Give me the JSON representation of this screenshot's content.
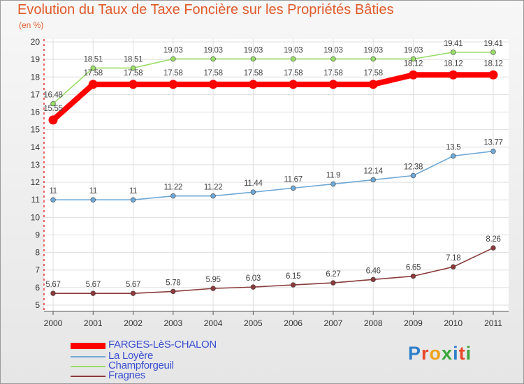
{
  "title": "Evolution du Taux de Taxe Foncière sur les Propriétés Bâties",
  "unit_label": "(en %)",
  "logo": {
    "text": "Proxiti",
    "colors": [
      "#2e7fc9",
      "#e8472a",
      "#f0a21c",
      "#3aa63a",
      "#2e7fc9",
      "#e8472a",
      "#3aa63a"
    ]
  },
  "chart_data": {
    "type": "line",
    "title": "Evolution du Taux de Taxe Foncière sur les Propriétés Bâties",
    "ylabel": "(en %)",
    "xlabel": "",
    "x": [
      "2000",
      "2001",
      "2002",
      "2003",
      "2004",
      "2005",
      "2006",
      "2007",
      "2008",
      "2009",
      "2010",
      "2011"
    ],
    "ylim": [
      5,
      20
    ],
    "yticks": [
      "5",
      "6",
      "7",
      "8",
      "9",
      "10",
      "11",
      "12",
      "13",
      "14",
      "15",
      "16",
      "17",
      "18",
      "19",
      "20"
    ],
    "grid": true,
    "legend_position": "bottom-left",
    "series": [
      {
        "name": "FARGES-LèS-CHALON",
        "color": "#ff0000",
        "emphasis": true,
        "values": [
          15.55,
          17.58,
          17.58,
          17.58,
          17.58,
          17.58,
          17.58,
          17.58,
          17.58,
          18.12,
          18.12,
          18.12
        ],
        "labels": [
          "15.55",
          "17.58",
          "17.58",
          "17.58",
          "17.58",
          "17.58",
          "17.58",
          "17.58",
          "17.58",
          "18.12",
          "18.12",
          "18.12"
        ]
      },
      {
        "name": "La Loyère",
        "color": "#6fa8d6",
        "values": [
          11,
          11,
          11,
          11.22,
          11.22,
          11.44,
          11.67,
          11.9,
          12.14,
          12.38,
          13.5,
          13.77
        ],
        "labels": [
          "11",
          "11",
          "11",
          "11.22",
          "11.22",
          "11.44",
          "11.67",
          "11.9",
          "12.14",
          "12.38",
          "13.5",
          "13.77"
        ]
      },
      {
        "name": "Champforgeuil",
        "color": "#99dd66",
        "values": [
          16.48,
          18.51,
          18.51,
          19.03,
          19.03,
          19.03,
          19.03,
          19.03,
          19.03,
          19.03,
          19.41,
          19.41
        ],
        "labels": [
          "16.48",
          "18.51",
          "18.51",
          "19.03",
          "19.03",
          "19.03",
          "19.03",
          "19.03",
          "19.03",
          "19.03",
          "19.41",
          "19.41"
        ]
      },
      {
        "name": "Fragnes",
        "color": "#8a3a3a",
        "values": [
          5.67,
          5.67,
          5.67,
          5.78,
          5.95,
          6.03,
          6.15,
          6.27,
          6.46,
          6.65,
          7.18,
          8.26
        ],
        "labels": [
          "5.67",
          "5.67",
          "5.67",
          "5.78",
          "5.95",
          "6.03",
          "6.15",
          "6.27",
          "6.46",
          "6.65",
          "7.18",
          "8.26"
        ]
      }
    ]
  }
}
